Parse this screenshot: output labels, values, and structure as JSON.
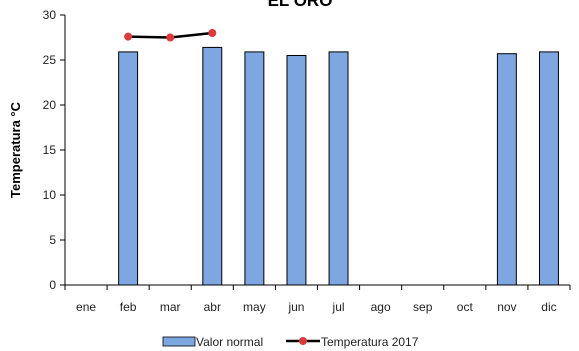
{
  "chart_data": {
    "type": "bar",
    "title": "EL ORO",
    "xlabel": "",
    "ylabel": "Temperatura °C",
    "ylim": [
      0,
      30
    ],
    "yticks": [
      0,
      5,
      10,
      15,
      20,
      25,
      30
    ],
    "grid": false,
    "legend_position": "bottom",
    "categories": [
      "ene",
      "feb",
      "mar",
      "abr",
      "may",
      "jun",
      "jul",
      "ago",
      "sep",
      "oct",
      "nov",
      "dic"
    ],
    "series": [
      {
        "name": "Valor normal",
        "type": "bar",
        "color": "#7EA6E0",
        "values": [
          null,
          25.9,
          null,
          26.4,
          25.9,
          25.5,
          25.9,
          null,
          null,
          null,
          25.7,
          25.9
        ]
      },
      {
        "name": "Temperatura 2017",
        "type": "line",
        "color": "#000000",
        "marker_color": "#D93A3A",
        "values": [
          null,
          27.6,
          27.5,
          28.0,
          null,
          null,
          null,
          null,
          null,
          null,
          null,
          null
        ]
      }
    ]
  }
}
